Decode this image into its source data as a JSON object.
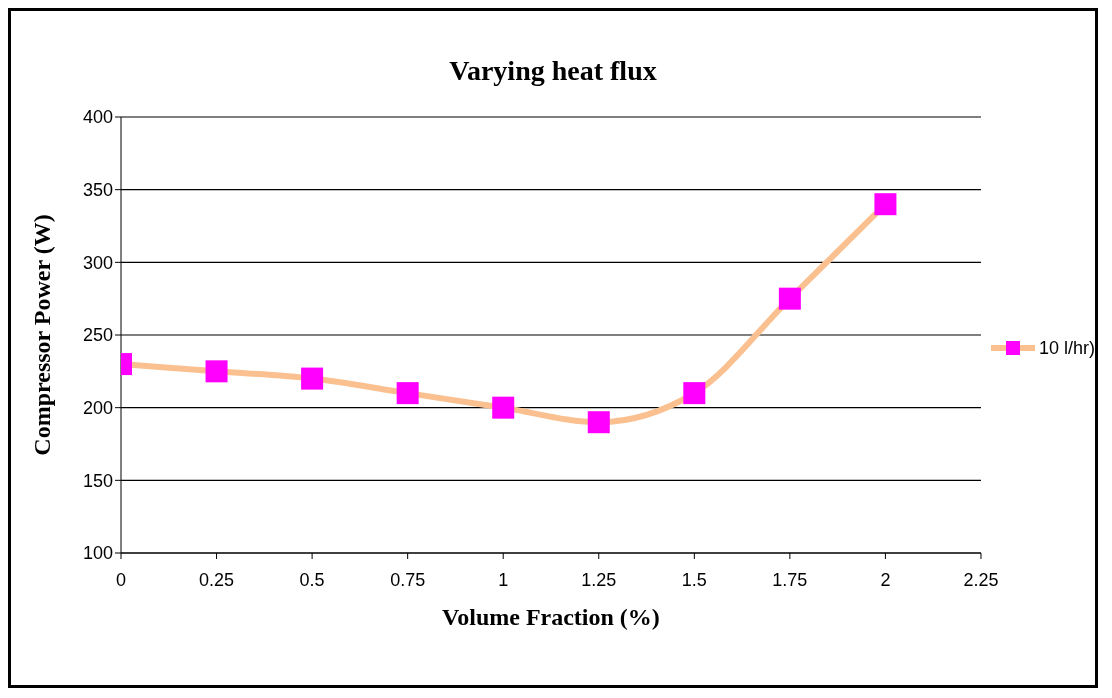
{
  "chart_data": {
    "type": "line",
    "title": "Varying heat flux",
    "xlabel": "Volume Fraction (%)",
    "ylabel": "Compressor Power (W)",
    "x": [
      0,
      0.25,
      0.5,
      0.75,
      1,
      1.25,
      1.5,
      1.75,
      2
    ],
    "series": [
      {
        "name": "10 l/hr)",
        "color": "#fac090",
        "colors": [
          "#ff00ff",
          "#ff00ff",
          "#ff00ff",
          "#ff00ff",
          "#ff00ff",
          "#ff00ff",
          "#ff00ff",
          "#ff00ff",
          "#ff00ff"
        ],
        "values": [
          230,
          225,
          220,
          210,
          200,
          190,
          210,
          275,
          340
        ]
      }
    ],
    "xlim": [
      0,
      2.25
    ],
    "xticks": [
      0,
      0.25,
      0.5,
      0.75,
      1,
      1.25,
      1.5,
      1.75,
      2,
      2.25
    ],
    "ylim": [
      100,
      400
    ],
    "yticks": [
      100,
      150,
      200,
      250,
      300,
      350,
      400
    ],
    "grid": "y",
    "legend": "right",
    "marker": "square",
    "line_style": "solid"
  }
}
